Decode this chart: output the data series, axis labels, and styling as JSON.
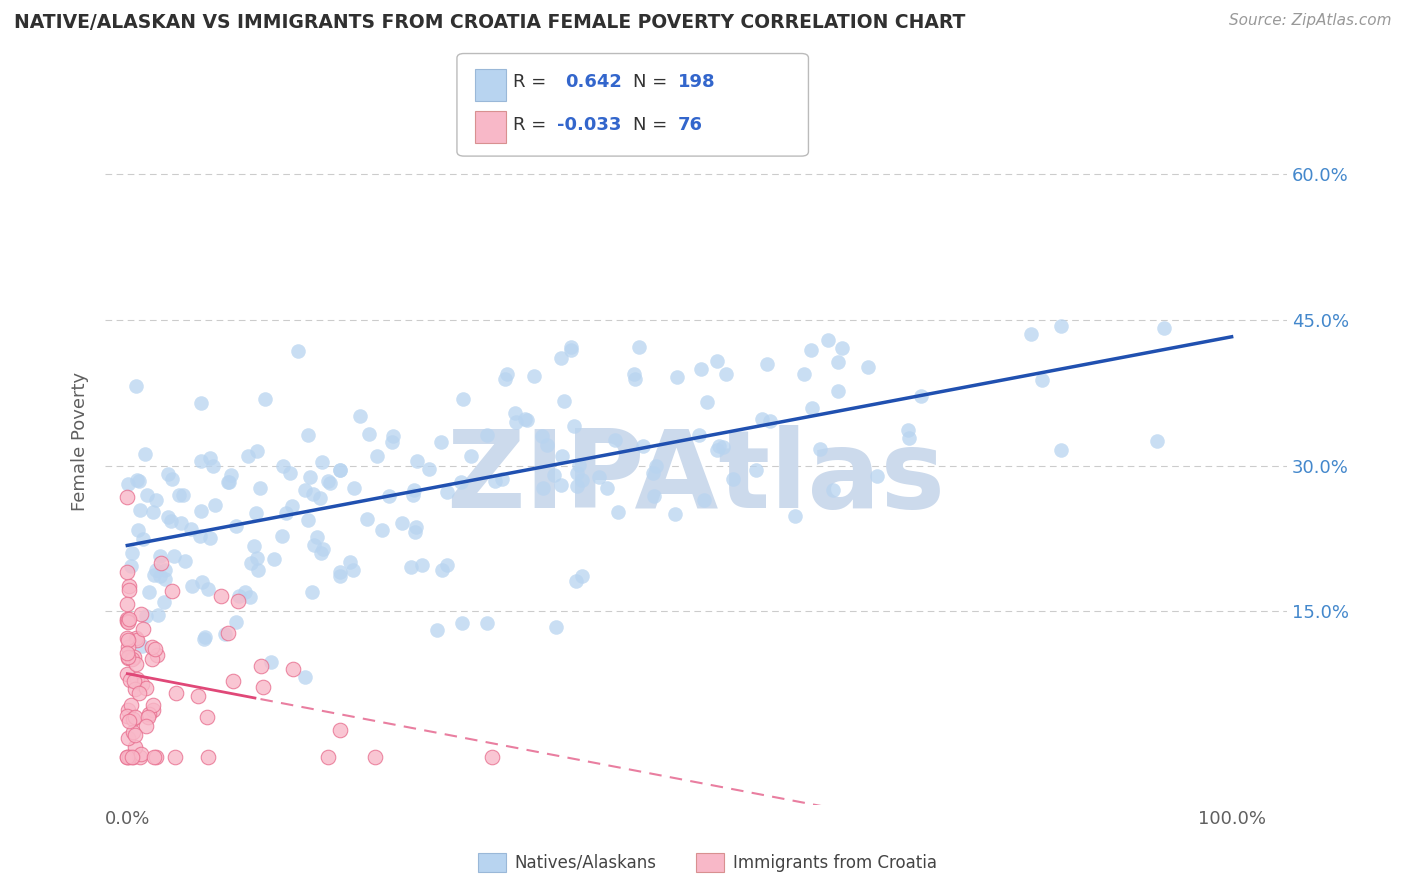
{
  "title": "NATIVE/ALASKAN VS IMMIGRANTS FROM CROATIA FEMALE POVERTY CORRELATION CHART",
  "source": "Source: ZipAtlas.com",
  "ylabel": "Female Poverty",
  "xlim": [
    -0.02,
    1.05
  ],
  "ylim": [
    -0.05,
    0.7
  ],
  "ytick_vals": [
    0.15,
    0.3,
    0.45,
    0.6
  ],
  "ytick_labels": [
    "15.0%",
    "30.0%",
    "45.0%",
    "60.0%"
  ],
  "xtick_vals": [
    0.0,
    1.0
  ],
  "xtick_labels": [
    "0.0%",
    "100.0%"
  ],
  "legend_r1": "R =",
  "legend_v1": "0.642",
  "legend_n1_label": "N =",
  "legend_n1": "198",
  "legend_r2": "R =",
  "legend_v2": "-0.033",
  "legend_n2_label": "N =",
  "legend_n2": "76",
  "blue_fill": "#b8d4f0",
  "blue_edge": "#7aaee0",
  "blue_line": "#2050b0",
  "pink_fill": "#f8b8c8",
  "pink_edge": "#e87090",
  "pink_line": "#e04878",
  "watermark": "ZIPAtlas",
  "watermark_color": "#ccdaec",
  "bg": "#ffffff",
  "grid_color": "#cccccc",
  "title_color": "#303030",
  "label_color": "#606060",
  "right_tick_color": "#4488cc",
  "legend_val_color": "#3366cc",
  "legend_label_color": "#333333",
  "blue_R": 0.642,
  "blue_N": 198,
  "pink_R": -0.033,
  "pink_N": 76,
  "seed_blue": 12,
  "seed_pink": 7
}
